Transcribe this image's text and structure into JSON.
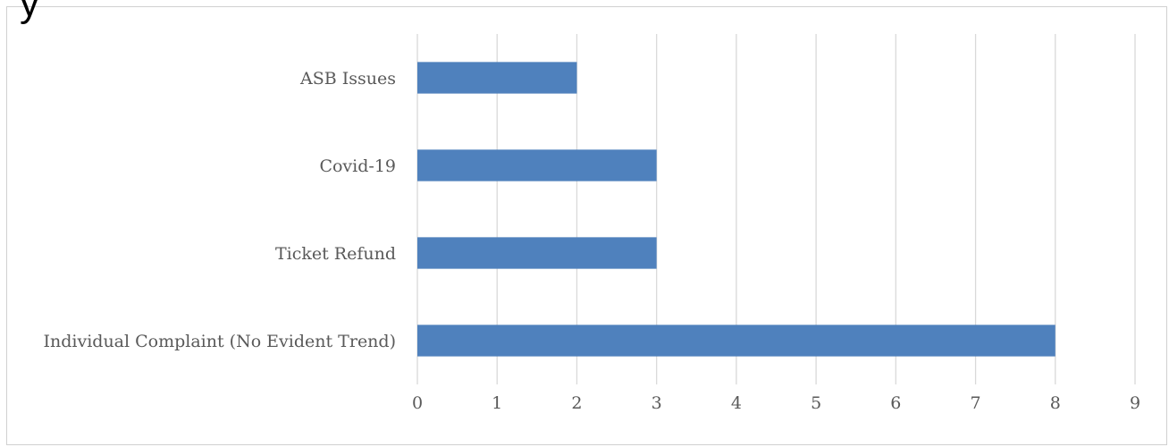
{
  "page_fragment": "y",
  "chart_data": {
    "type": "bar",
    "orientation": "horizontal",
    "title": "",
    "xlabel": "",
    "ylabel": "",
    "categories": [
      "ASB Issues",
      "Covid-19",
      "Ticket Refund",
      "Individual Complaint (No Evident Trend)"
    ],
    "values": [
      2,
      3,
      3,
      8
    ],
    "xlim": [
      0,
      9
    ],
    "xticks": [
      "0",
      "1",
      "2",
      "3",
      "4",
      "5",
      "6",
      "7",
      "8",
      "9"
    ],
    "grid": "vertical",
    "legend": "none",
    "bar_color": "#4f81bd",
    "grid_color": "#d9d9d9",
    "label_color": "#595959"
  }
}
